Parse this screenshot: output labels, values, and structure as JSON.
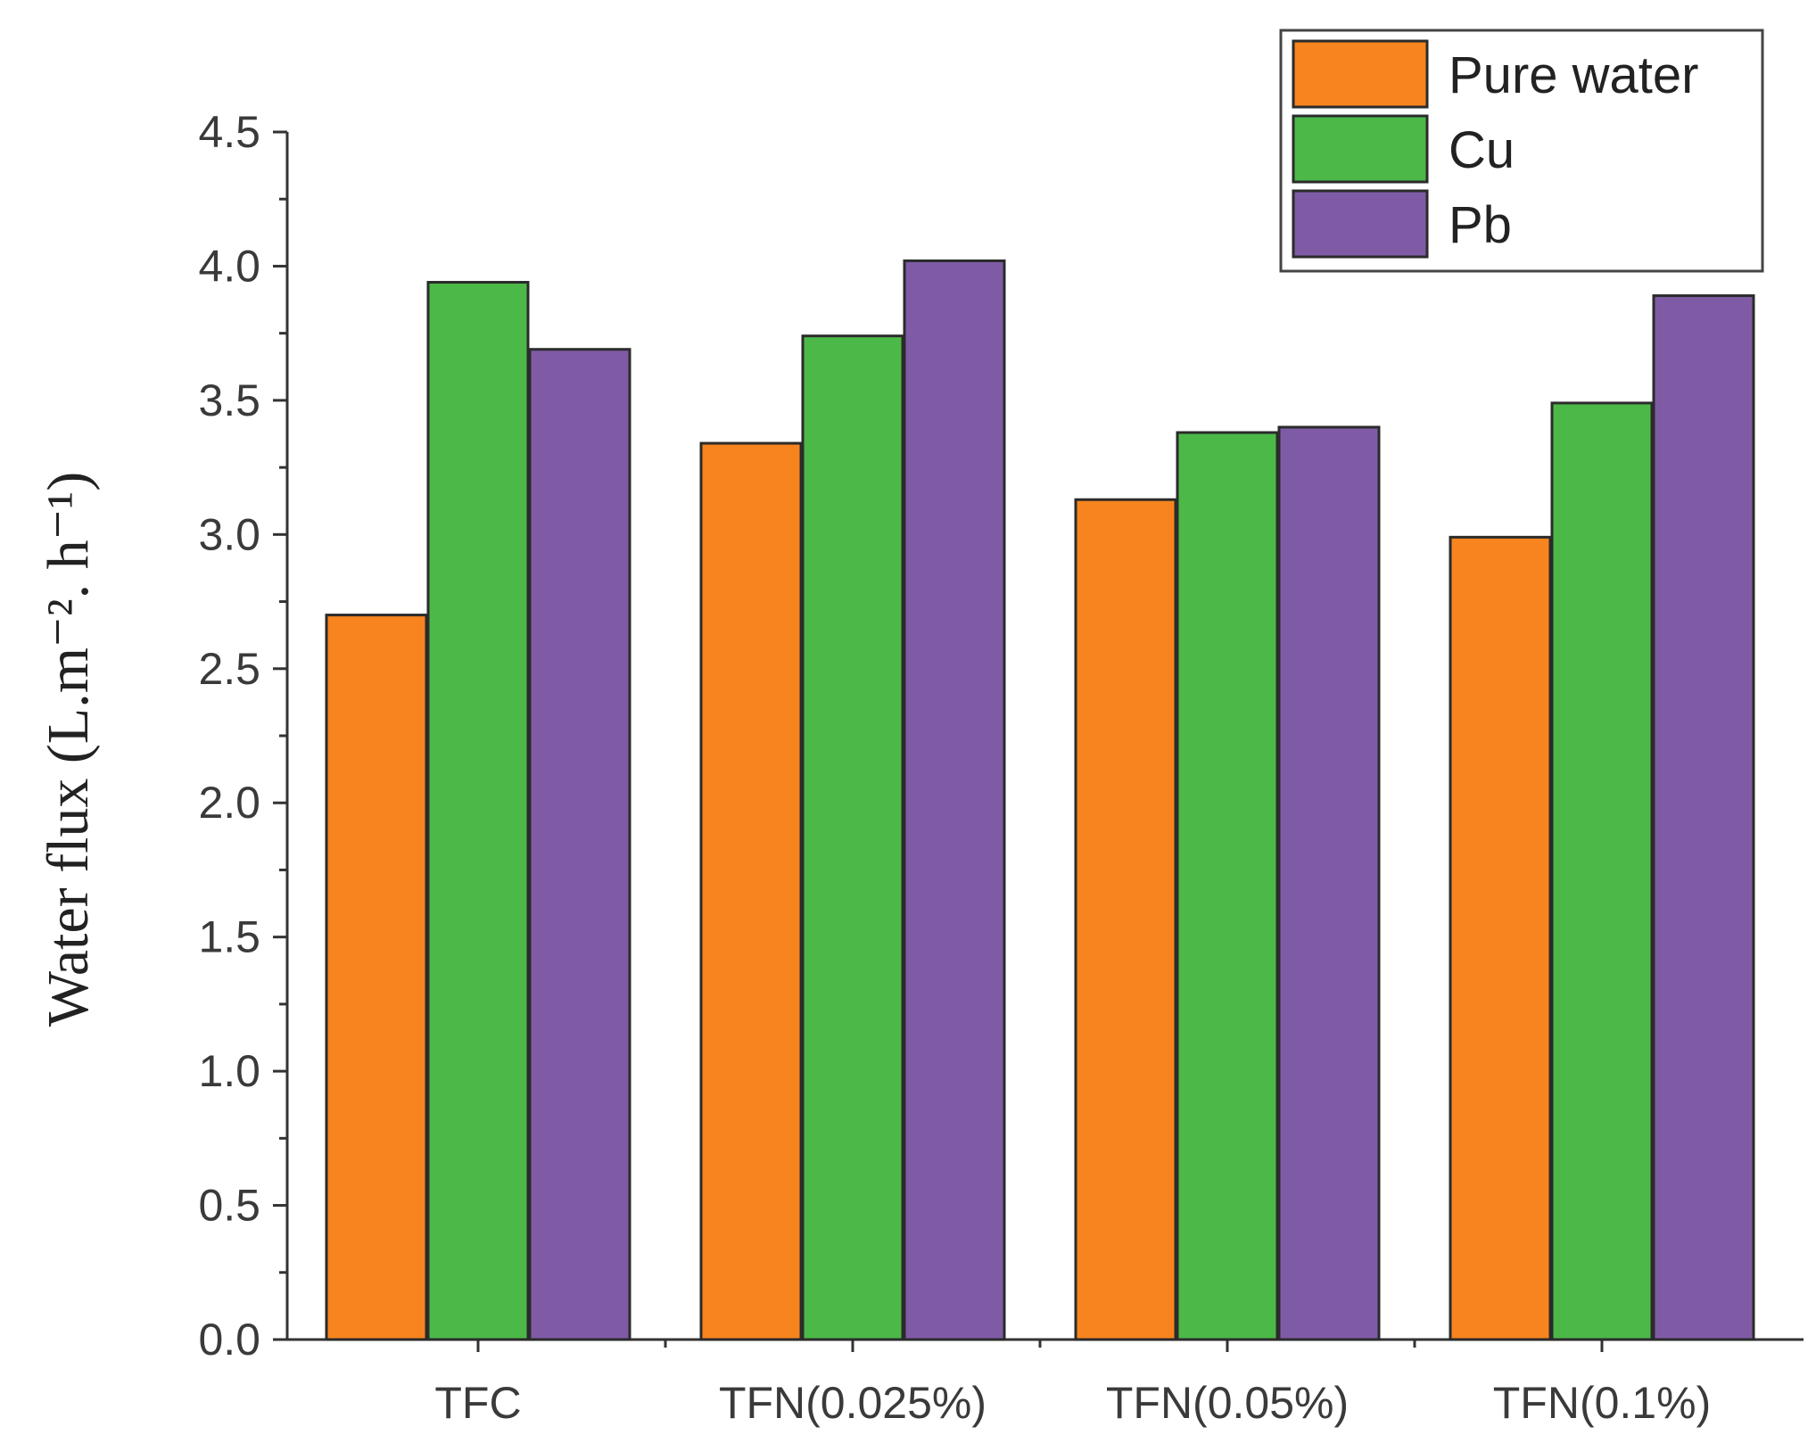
{
  "chart_data": {
    "type": "bar",
    "title": "",
    "xlabel": "",
    "ylabel": "Water flux   (L.m⁻². h⁻¹)",
    "ylim": [
      0,
      4.5
    ],
    "yticks": [
      "0.0",
      "0.5",
      "1.0",
      "1.5",
      "2.0",
      "2.5",
      "3.0",
      "3.5",
      "4.0",
      "4.5"
    ],
    "categories": [
      "TFC",
      "TFN(0.025%)",
      "TFN(0.05%)",
      "TFN(0.1%)"
    ],
    "series": [
      {
        "name": "Pure water",
        "color": "#F7841E",
        "values": [
          2.7,
          3.34,
          3.13,
          2.99
        ]
      },
      {
        "name": "Cu",
        "color": "#4CB848",
        "values": [
          3.94,
          3.74,
          3.38,
          3.49
        ]
      },
      {
        "name": "Pb",
        "color": "#7F5BA6",
        "values": [
          3.69,
          4.02,
          3.4,
          3.89
        ]
      }
    ],
    "legend_position": "top-right",
    "grid": false
  }
}
